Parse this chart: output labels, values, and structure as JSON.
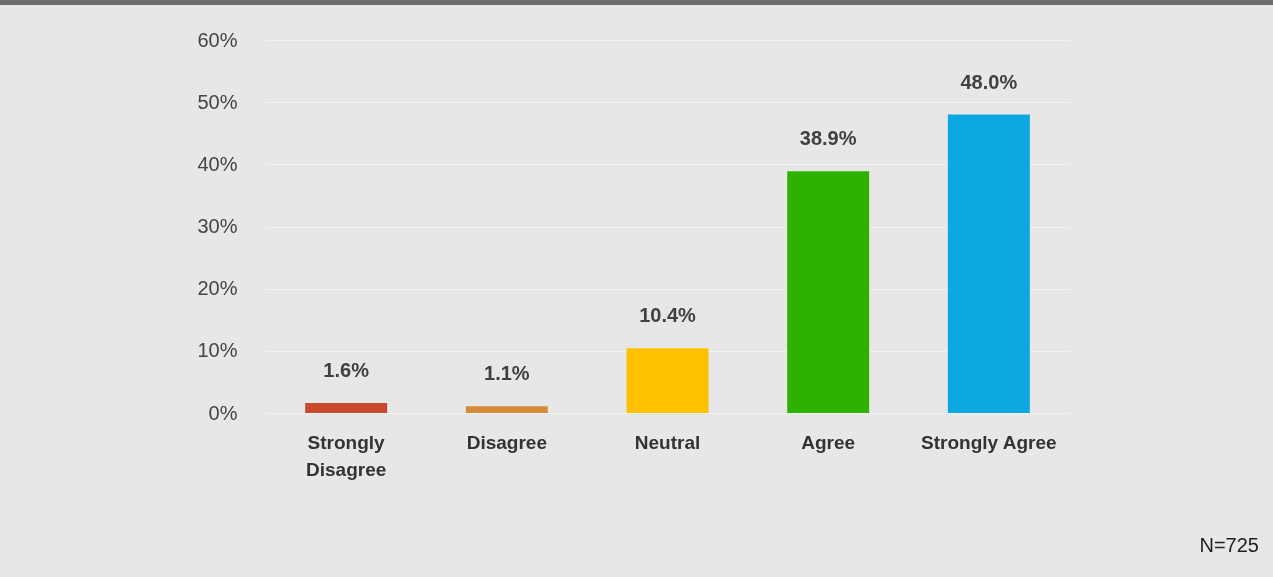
{
  "chart_data": {
    "type": "bar",
    "categories": [
      "Strongly Disagree",
      "Disagree",
      "Neutral",
      "Agree",
      "Strongly Agree"
    ],
    "values": [
      1.6,
      1.1,
      10.4,
      38.9,
      48.0
    ],
    "colors": [
      "#c9492c",
      "#d88a38",
      "#ffc000",
      "#2eb200",
      "#0aa7e0"
    ],
    "value_labels": [
      "1.6%",
      "1.1%",
      "10.4%",
      "38.9%",
      "48.0%"
    ],
    "ylim": [
      0,
      60
    ],
    "yticks": [
      {
        "value": 0,
        "label": "0%"
      },
      {
        "value": 10,
        "label": "10%"
      },
      {
        "value": 20,
        "label": "20%"
      },
      {
        "value": 30,
        "label": "30%"
      },
      {
        "value": 40,
        "label": "40%"
      },
      {
        "value": 50,
        "label": "50%"
      },
      {
        "value": 60,
        "label": "60%"
      }
    ],
    "grid": "y",
    "annotations": [
      "N=725"
    ]
  }
}
